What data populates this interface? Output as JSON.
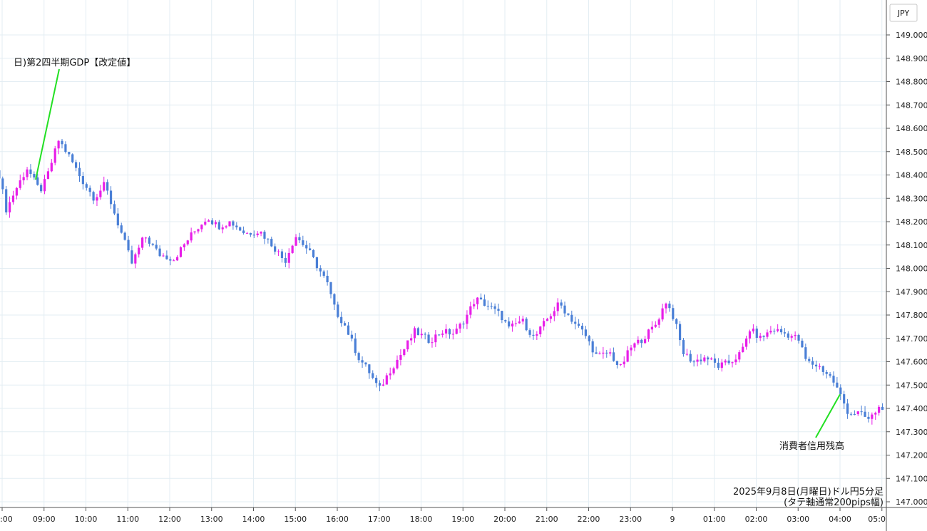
{
  "chart_data": {
    "type": "candlestick",
    "title": "",
    "caption_line1": "2025年9月8日(月曜日)ドル円5分足",
    "caption_line2": "(タテ軸通常200pips幅)",
    "currency_label": "JPY",
    "ylim": [
      147.0,
      149.0
    ],
    "y_ticks": [
      "149.000",
      "148.900",
      "148.800",
      "148.700",
      "148.600",
      "148.500",
      "148.400",
      "148.300",
      "148.200",
      "148.100",
      "148.000",
      "147.900",
      "147.800",
      "147.700",
      "147.600",
      "147.500",
      "147.400",
      "147.300",
      "147.200",
      "147.100",
      "147.000"
    ],
    "x_ticks": [
      {
        "label": ":00",
        "hour": 8
      },
      {
        "label": "09:00",
        "hour": 9
      },
      {
        "label": "10:00",
        "hour": 10
      },
      {
        "label": "11:00",
        "hour": 11
      },
      {
        "label": "12:00",
        "hour": 12
      },
      {
        "label": "13:00",
        "hour": 13
      },
      {
        "label": "14:00",
        "hour": 14
      },
      {
        "label": "15:00",
        "hour": 15
      },
      {
        "label": "16:00",
        "hour": 16
      },
      {
        "label": "17:00",
        "hour": 17
      },
      {
        "label": "18:00",
        "hour": 18
      },
      {
        "label": "19:00",
        "hour": 19
      },
      {
        "label": "20:00",
        "hour": 20
      },
      {
        "label": "21:00",
        "hour": 21
      },
      {
        "label": "22:00",
        "hour": 22
      },
      {
        "label": "23:00",
        "hour": 23
      },
      {
        "label": "9",
        "hour": 24
      },
      {
        "label": "01:00",
        "hour": 25
      },
      {
        "label": "02:00",
        "hour": 26
      },
      {
        "label": "03:00",
        "hour": 27
      },
      {
        "label": "04:00",
        "hour": 28
      },
      {
        "label": "05:0",
        "hour": 29
      }
    ],
    "annotations": [
      {
        "text": "日)第2四半期GDP【改定値】",
        "hour": 8.8,
        "price": 148.38
      },
      {
        "text": "消費者信用残高",
        "hour": 28.0,
        "price": 147.46
      }
    ],
    "key_closes": [
      {
        "hour": 7.93,
        "price": 148.4
      },
      {
        "hour": 8.1,
        "price": 148.25
      },
      {
        "hour": 8.3,
        "price": 148.33
      },
      {
        "hour": 8.6,
        "price": 148.43
      },
      {
        "hour": 8.9,
        "price": 148.33
      },
      {
        "hour": 9.05,
        "price": 148.38
      },
      {
        "hour": 9.35,
        "price": 148.55
      },
      {
        "hour": 9.6,
        "price": 148.48
      },
      {
        "hour": 9.9,
        "price": 148.38
      },
      {
        "hour": 10.2,
        "price": 148.3
      },
      {
        "hour": 10.45,
        "price": 148.36
      },
      {
        "hour": 10.75,
        "price": 148.2
      },
      {
        "hour": 11.1,
        "price": 148.02
      },
      {
        "hour": 11.4,
        "price": 148.14
      },
      {
        "hour": 11.75,
        "price": 148.06
      },
      {
        "hour": 12.1,
        "price": 148.04
      },
      {
        "hour": 12.5,
        "price": 148.14
      },
      {
        "hour": 12.9,
        "price": 148.22
      },
      {
        "hour": 13.15,
        "price": 148.18
      },
      {
        "hour": 13.45,
        "price": 148.2
      },
      {
        "hour": 13.8,
        "price": 148.15
      },
      {
        "hour": 14.15,
        "price": 148.16
      },
      {
        "hour": 14.45,
        "price": 148.1
      },
      {
        "hour": 14.75,
        "price": 148.03
      },
      {
        "hour": 15.0,
        "price": 148.14
      },
      {
        "hour": 15.3,
        "price": 148.08
      },
      {
        "hour": 15.55,
        "price": 148.0
      },
      {
        "hour": 15.75,
        "price": 147.94
      },
      {
        "hour": 15.95,
        "price": 147.82
      },
      {
        "hour": 16.2,
        "price": 147.75
      },
      {
        "hour": 16.5,
        "price": 147.62
      },
      {
        "hour": 16.75,
        "price": 147.56
      },
      {
        "hour": 17.0,
        "price": 147.48
      },
      {
        "hour": 17.25,
        "price": 147.56
      },
      {
        "hour": 17.55,
        "price": 147.64
      },
      {
        "hour": 17.85,
        "price": 147.73
      },
      {
        "hour": 18.2,
        "price": 147.69
      },
      {
        "hour": 18.5,
        "price": 147.73
      },
      {
        "hour": 18.8,
        "price": 147.72
      },
      {
        "hour": 19.1,
        "price": 147.8
      },
      {
        "hour": 19.3,
        "price": 147.87
      },
      {
        "hour": 19.6,
        "price": 147.84
      },
      {
        "hour": 19.9,
        "price": 147.8
      },
      {
        "hour": 20.1,
        "price": 147.74
      },
      {
        "hour": 20.4,
        "price": 147.78
      },
      {
        "hour": 20.7,
        "price": 147.7
      },
      {
        "hour": 21.0,
        "price": 147.78
      },
      {
        "hour": 21.3,
        "price": 147.85
      },
      {
        "hour": 21.6,
        "price": 147.78
      },
      {
        "hour": 21.9,
        "price": 147.72
      },
      {
        "hour": 22.2,
        "price": 147.62
      },
      {
        "hour": 22.5,
        "price": 147.64
      },
      {
        "hour": 22.75,
        "price": 147.57
      },
      {
        "hour": 23.0,
        "price": 147.66
      },
      {
        "hour": 23.3,
        "price": 147.7
      },
      {
        "hour": 23.6,
        "price": 147.76
      },
      {
        "hour": 23.85,
        "price": 147.86
      },
      {
        "hour": 24.05,
        "price": 147.78
      },
      {
        "hour": 24.25,
        "price": 147.64
      },
      {
        "hour": 24.5,
        "price": 147.6
      },
      {
        "hour": 24.8,
        "price": 147.62
      },
      {
        "hour": 25.1,
        "price": 147.58
      },
      {
        "hour": 25.4,
        "price": 147.6
      },
      {
        "hour": 25.65,
        "price": 147.64
      },
      {
        "hour": 25.85,
        "price": 147.74
      },
      {
        "hour": 26.1,
        "price": 147.7
      },
      {
        "hour": 26.4,
        "price": 147.74
      },
      {
        "hour": 26.7,
        "price": 147.72
      },
      {
        "hour": 27.0,
        "price": 147.7
      },
      {
        "hour": 27.2,
        "price": 147.6
      },
      {
        "hour": 27.5,
        "price": 147.58
      },
      {
        "hour": 27.8,
        "price": 147.53
      },
      {
        "hour": 28.0,
        "price": 147.46
      },
      {
        "hour": 28.2,
        "price": 147.38
      },
      {
        "hour": 28.45,
        "price": 147.38
      },
      {
        "hour": 28.7,
        "price": 147.35
      },
      {
        "hour": 28.9,
        "price": 147.4
      },
      {
        "hour": 29.05,
        "price": 147.41
      }
    ],
    "up_color": "#e81ee8",
    "down_color": "#4a7fd6",
    "grid": true,
    "grid_color": "#e3edf3",
    "annotation_line_color": "#22e022"
  }
}
